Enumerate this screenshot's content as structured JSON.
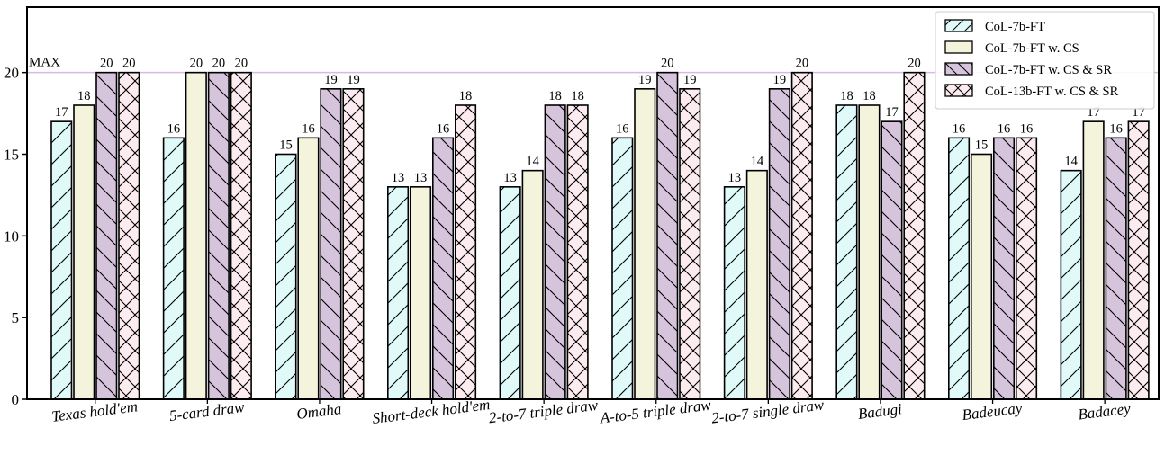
{
  "chart_data": {
    "type": "bar",
    "categories": [
      "Texas hold'em",
      "5-card draw",
      "Omaha",
      "Short-deck hold'em",
      "2-to-7 triple draw",
      "A-to-5 triple draw",
      "2-to-7 single draw",
      "Badugi",
      "Badeucay",
      "Badacey"
    ],
    "series": [
      {
        "name": "CoL-7b-FT",
        "values": [
          17,
          16,
          15,
          13,
          13,
          16,
          13,
          18,
          16,
          14
        ],
        "color": "#e0fafa",
        "hatch": "fwd"
      },
      {
        "name": "CoL-7b-FT w. CS",
        "values": [
          18,
          20,
          16,
          13,
          14,
          19,
          14,
          18,
          15,
          17
        ],
        "color": "#f4f4dc",
        "hatch": "none"
      },
      {
        "name": "CoL-7b-FT w. CS & SR",
        "values": [
          20,
          20,
          19,
          16,
          18,
          20,
          19,
          17,
          16,
          16
        ],
        "color": "#d6c4dc",
        "hatch": "back"
      },
      {
        "name": "CoL-13b-FT w. CS & SR",
        "values": [
          20,
          20,
          19,
          18,
          18,
          19,
          20,
          20,
          16,
          17
        ],
        "color": "#fcecef",
        "hatch": "cross"
      }
    ],
    "yticks": [
      0,
      5,
      10,
      15,
      20
    ],
    "ylim": [
      0,
      24
    ],
    "reference_line": {
      "value": 20,
      "label": "MAX",
      "color": "#d8b8e6"
    },
    "legend_position": "top-right"
  }
}
